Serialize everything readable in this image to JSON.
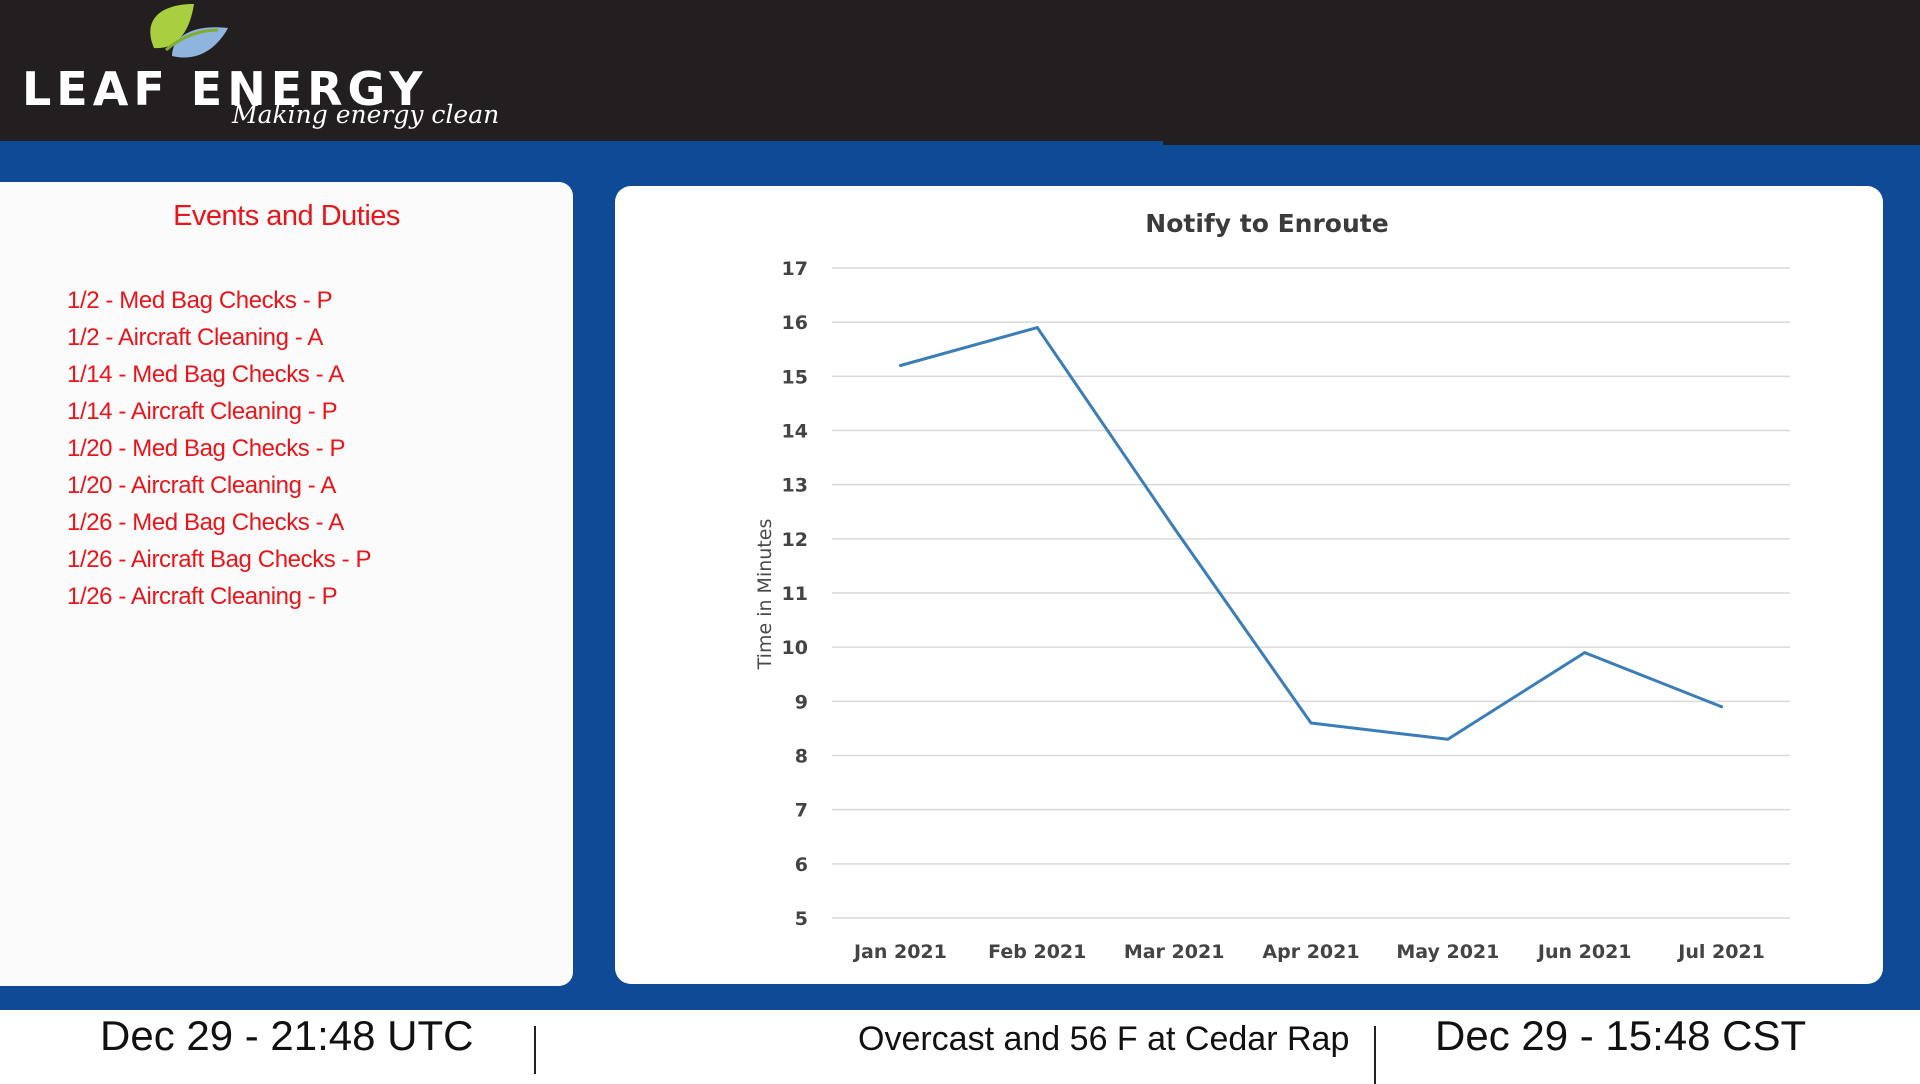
{
  "header": {
    "logo_text": "LEAF ENERGY",
    "tagline": "Making energy clean",
    "leaf_colors": [
      "#a8cf3f",
      "#7fae2e",
      "#8fb4dd"
    ]
  },
  "events": {
    "title": "Events and Duties",
    "items": [
      "1/2 - Med Bag Checks - P",
      "1/2 - Aircraft Cleaning - A",
      "1/14 - Med Bag Checks - A",
      "1/14 - Aircraft Cleaning - P",
      "1/20 - Med Bag Checks - P",
      "1/20 - Aircraft Cleaning - A",
      "1/26 - Med Bag Checks - A",
      "1/26 - Aircraft Bag Checks - P",
      "1/26 - Aircraft Cleaning - P"
    ]
  },
  "chart_data": {
    "type": "line",
    "title": "Notify to Enroute",
    "xlabel": "",
    "ylabel": "Time in Minutes",
    "categories": [
      "Jan 2021",
      "Feb 2021",
      "Mar 2021",
      "Apr 2021",
      "May 2021",
      "Jun 2021",
      "Jul 2021"
    ],
    "series": [
      {
        "values": [
          15.2,
          15.9,
          12.2,
          8.6,
          8.3,
          9.9,
          8.9
        ],
        "color": "#3a7db8"
      }
    ],
    "ylim": [
      5,
      17
    ],
    "yticks": [
      5,
      6,
      7,
      8,
      9,
      10,
      11,
      12,
      13,
      14,
      15,
      16,
      17
    ],
    "grid": true,
    "legend": "none"
  },
  "footer": {
    "utc_time": "Dec 29 - 21:48 UTC",
    "weather": "Overcast and 56 F at Cedar Rap",
    "cst_time": "Dec 29 - 15:48 CST"
  },
  "colors": {
    "header_bg": "#231f20",
    "band_blue": "#0e4a96",
    "events_red": "#e8151b"
  }
}
